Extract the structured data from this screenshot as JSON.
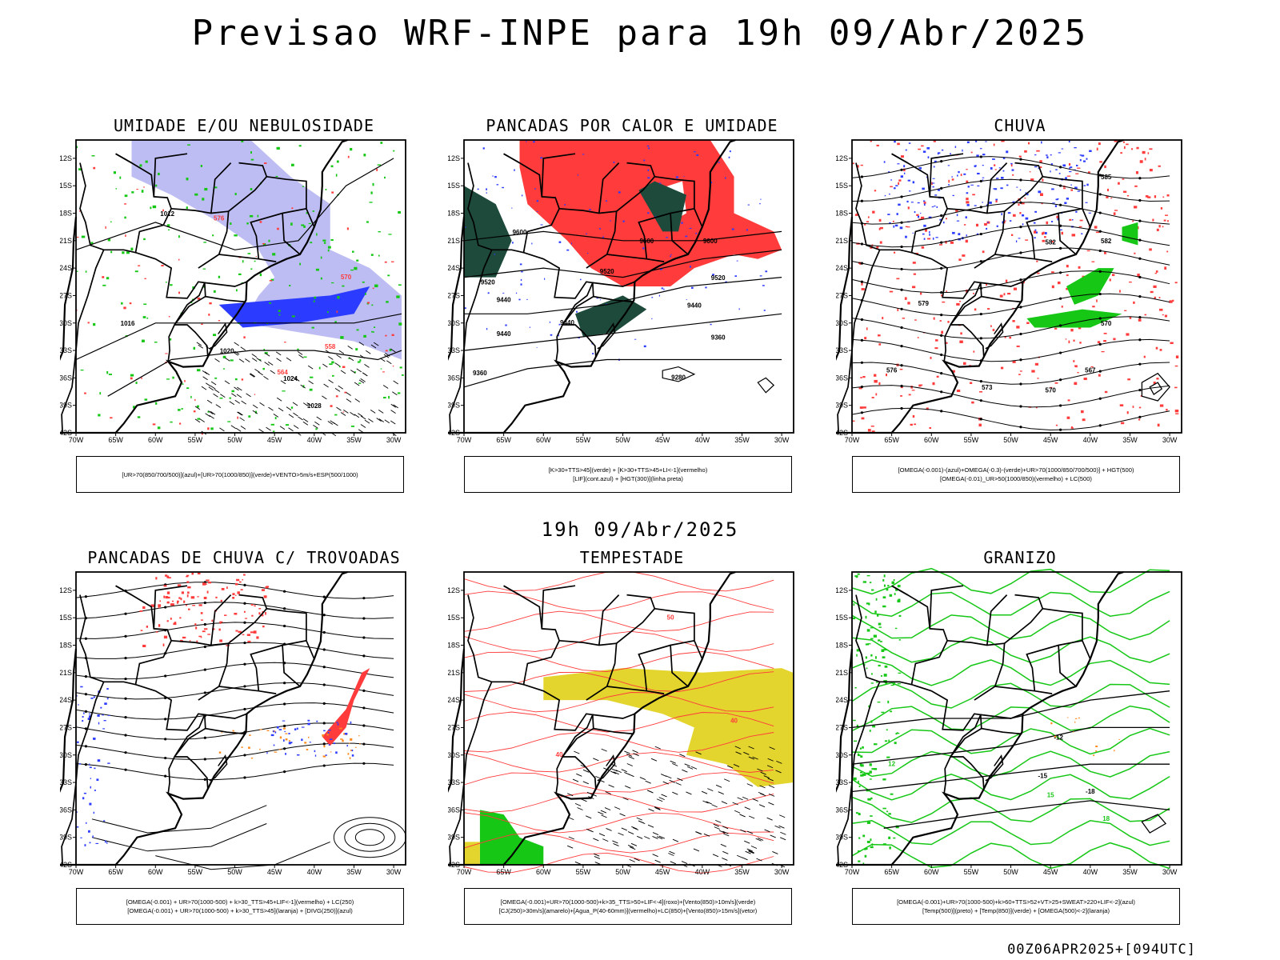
{
  "header": {
    "title": "Previsao WRF-INPE  para 19h 09/Abr/2025"
  },
  "mid_date": "19h 09/Abr/2025",
  "footer": "00Z06APR2025+[094UTC]",
  "axes": {
    "lat_labels": [
      "12S",
      "15S",
      "18S",
      "21S",
      "24S",
      "27S",
      "30S",
      "33S",
      "36S",
      "39S",
      "42S"
    ],
    "lon_labels": [
      "70W",
      "65W",
      "60W",
      "55W",
      "50W",
      "45W",
      "40W",
      "35W",
      "30W"
    ]
  },
  "panels": [
    {
      "title": "UMIDADE E/OU NEBULOSIDADE",
      "legend": [
        "[UR>70(850/700/500)](azul)+[UR>70(1000/850)](verde)+VENTO>5m/s+ESP(500/1000)"
      ],
      "contour_labels": [
        "1012",
        "1016",
        "1020",
        "1024",
        "1028",
        "570",
        "576",
        "564",
        "558"
      ]
    },
    {
      "title": "PANCADAS POR CALOR E UMIDADE",
      "legend": [
        "[K>30+TTS>45](verde)  +  [K>30+TTS>45+LI<-1](vermelho)",
        "[LIF](cont.azul)  +  [HGT(300)](linha preta)"
      ],
      "contour_labels": [
        "9600",
        "9520",
        "9440",
        "9360",
        "9280"
      ]
    },
    {
      "title": "CHUVA",
      "legend": [
        "[OMEGA(-0.001)-(azul)+OMEGA(-0.3)-(verde)+UR>70(1000/850/700/500)]  +  HGT(500)",
        "[OMEGA(-0.01)_UR>50(1000/850)(vermelho)  +  LC(500)"
      ],
      "contour_labels": [
        "585",
        "582",
        "579",
        "576",
        "573",
        "570",
        "567"
      ]
    },
    {
      "title": "PANCADAS DE CHUVA C/ TROVOADAS",
      "legend": [
        "[OMEGA(-0.001) + UR>70(1000-500) + k>30_TTS>45+LIF<-1](vermelho) + LC(250)",
        "[OMEGA(-0.001) + UR>70(1000-500) + k>30_TTS>45](laranja) + [DIVG(250)](azul)"
      ],
      "contour_labels": []
    },
    {
      "title": "TEMPESTADE",
      "legend": [
        "[OMEGA(-0.001)+UR>70(1000-500)+k>35_TTS>50+LIF<-4](roxo)+[Vento(850)>10m/s](verde)",
        "[CJ(250)>30m/s](amarelo)+[Agua_P(40-60mm)](vermelho)+LC(850)+[Vento(850)>15m/s](vetor)"
      ],
      "contour_labels": [
        "40",
        "50"
      ]
    },
    {
      "title": "GRANIZO",
      "legend": [
        "[OMEGA(-0.001)+UR>70(1000-500)+k>60+TTS>52+VT>25+SWEAT>220+LIF<-2](azul)",
        "[Temp(500)](preto) + [Temp(850)](verde) + [OMEGA(500)<-2](laranja)"
      ],
      "contour_labels": [
        "-12",
        "-15",
        "-18",
        "12",
        "15",
        "18"
      ]
    }
  ],
  "colors": {
    "blue": "#2b3bff",
    "lavender": "#b9b9f2",
    "green": "#16c716",
    "red": "#ff3b3b",
    "darkgreen": "#1e4a3c",
    "yellow": "#e3d52e",
    "orange": "#ff8a1e",
    "purple": "#9b30ff"
  }
}
